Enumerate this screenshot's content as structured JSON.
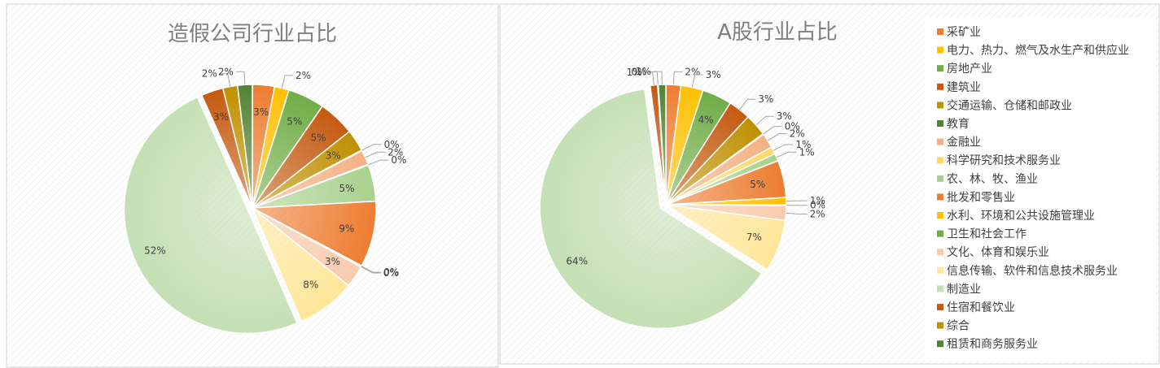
{
  "chart_data": [
    {
      "type": "pie",
      "title": "造假公司行业占比",
      "labels": [
        "采矿业",
        "电力、热力、燃气及水生产和供应业",
        "房地产业",
        "建筑业",
        "交通运输、仓储和邮政业",
        "教育",
        "金融业",
        "科学研究和技术服务业",
        "农、林、牧、渔业",
        "批发和零售业",
        "水利、环境和公共设施管理业",
        "卫生和社会工作",
        "文化、体育和娱乐业",
        "信息传输、软件和信息技术服务业",
        "制造业",
        "住宿和餐饮业",
        "综合",
        "租赁和商务服务业"
      ],
      "values": [
        3,
        2,
        5,
        5,
        3,
        0,
        2,
        0,
        5,
        9,
        0,
        0,
        3,
        8,
        52,
        3,
        2,
        2
      ],
      "data_labels": [
        "3%",
        "2%",
        "5%",
        "5%",
        "3%",
        "0%",
        "2%",
        "0%",
        "5%",
        "9%",
        "0%",
        "0%",
        "3%",
        "8%",
        "52%",
        "3%",
        "2%",
        "2%"
      ]
    },
    {
      "type": "pie",
      "title": "A股行业占比",
      "labels": [
        "采矿业",
        "电力、热力、燃气及水生产和供应业",
        "房地产业",
        "建筑业",
        "交通运输、仓储和邮政业",
        "教育",
        "金融业",
        "科学研究和技术服务业",
        "农、林、牧、渔业",
        "批发和零售业",
        "水利、环境和公共设施管理业",
        "卫生和社会工作",
        "文化、体育和娱乐业",
        "信息传输、软件和信息技术服务业",
        "制造业",
        "住宿和餐饮业",
        "综合",
        "租赁和商务服务业"
      ],
      "values": [
        2,
        3,
        4,
        3,
        3,
        0,
        2,
        1,
        1,
        5,
        1,
        0,
        2,
        7,
        64,
        1,
        0,
        1
      ],
      "data_labels": [
        "2%",
        "3%",
        "4%",
        "3%",
        "3%",
        "0%",
        "2%",
        "1%",
        "1%",
        "5%",
        "1%",
        "0%",
        "2%",
        "7%",
        "64%",
        "1%",
        "0%",
        "1%"
      ],
      "legend_position": "right"
    }
  ],
  "legend": {
    "items": [
      "采矿业",
      "电力、热力、燃气及水生产和供应业",
      "房地产业",
      "建筑业",
      "交通运输、仓储和邮政业",
      "教育",
      "金融业",
      "科学研究和技术服务业",
      "农、林、牧、渔业",
      "批发和零售业",
      "水利、环境和公共设施管理业",
      "卫生和社会工作",
      "文化、体育和娱乐业",
      "信息传输、软件和信息技术服务业",
      "制造业",
      "住宿和餐饮业",
      "综合",
      "租赁和商务服务业"
    ]
  },
  "colors": [
    "#ED7D31",
    "#FFC000",
    "#70AD47",
    "#C55A11",
    "#BF9000",
    "#548235",
    "#F4B183",
    "#FFD966",
    "#A9D18E",
    "#ED7D31",
    "#FFC000",
    "#70AD47",
    "#F8CBAD",
    "#FFE699",
    "#C5E0B4",
    "#C55A11",
    "#BF9000",
    "#548235"
  ]
}
